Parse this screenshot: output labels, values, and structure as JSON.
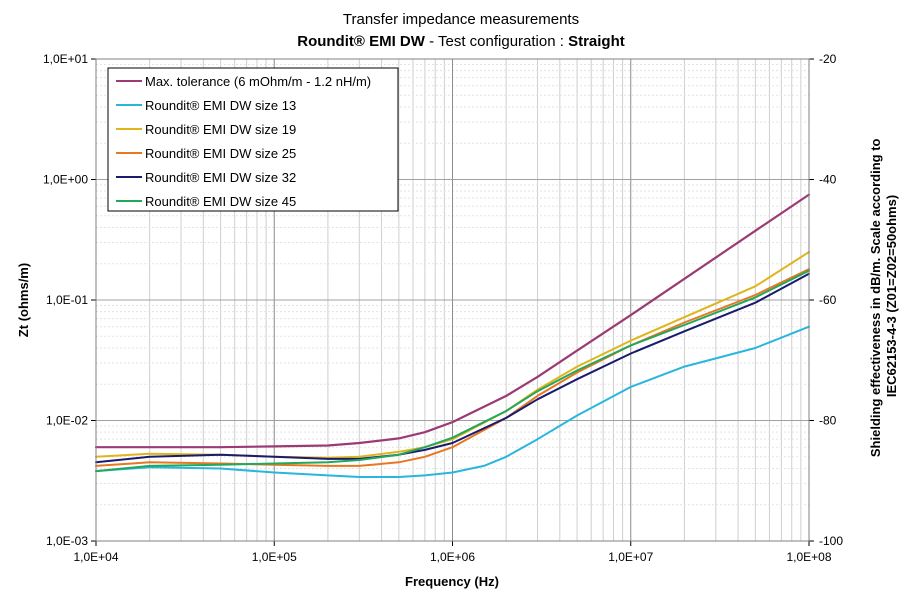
{
  "chart_data": {
    "type": "line",
    "title": "Transfer impedance measurements",
    "subtitle": {
      "part1": "Roundit® EMI DW",
      "part2": " - Test configuration : ",
      "part3": "Straight"
    },
    "xlabel": "Frequency (Hz)",
    "ylabel": "Zt (ohms/m)",
    "y2label_line1": "Shielding effectiveness in dB/m. Scale according to",
    "y2label_line2": "IEC62153-4-3 (Z01=Z02=50ohms)",
    "x_scale": "log",
    "y_scale": "log",
    "xlim": [
      10000,
      100000000
    ],
    "ylim": [
      0.001,
      10
    ],
    "y2lim": [
      -100,
      -20
    ],
    "x_ticks": [
      {
        "value": 10000,
        "label": "1,0E+04"
      },
      {
        "value": 100000,
        "label": "1,0E+05"
      },
      {
        "value": 1000000,
        "label": "1,0E+06"
      },
      {
        "value": 10000000,
        "label": "1,0E+07"
      },
      {
        "value": 100000000,
        "label": "1,0E+08"
      }
    ],
    "y_ticks": [
      {
        "value": 0.001,
        "label": "1,0E-03"
      },
      {
        "value": 0.01,
        "label": "1,0E-02"
      },
      {
        "value": 0.1,
        "label": "1,0E-01"
      },
      {
        "value": 1,
        "label": "1,0E+00"
      },
      {
        "value": 10,
        "label": "1,0E+01"
      }
    ],
    "y2_ticks": [
      {
        "value": -100,
        "label": "-100"
      },
      {
        "value": -80,
        "label": "-80"
      },
      {
        "value": -60,
        "label": "-60"
      },
      {
        "value": -40,
        "label": "-40"
      },
      {
        "value": -20,
        "label": "-20"
      }
    ],
    "grid": true,
    "legend_position": "top-left",
    "series": [
      {
        "name": "Max. tolerance (6 mOhm/m - 1.2 nH/m)",
        "color": "#9b3a74",
        "x": [
          10000,
          50000,
          100000,
          200000,
          300000,
          500000,
          700000,
          1000000,
          2000000,
          3000000,
          5000000,
          10000000,
          20000000,
          50000000,
          100000000
        ],
        "y": [
          0.006,
          0.006,
          0.0061,
          0.0062,
          0.0065,
          0.0071,
          0.008,
          0.0097,
          0.016,
          0.023,
          0.038,
          0.075,
          0.15,
          0.375,
          0.75
        ]
      },
      {
        "name": "Roundit® EMI DW size 13",
        "color": "#29b6dd",
        "x": [
          10000,
          20000,
          50000,
          100000,
          200000,
          300000,
          500000,
          700000,
          1000000,
          1500000,
          2000000,
          3000000,
          5000000,
          10000000,
          20000000,
          50000000,
          100000000
        ],
        "y": [
          0.0038,
          0.0041,
          0.004,
          0.0037,
          0.0035,
          0.0034,
          0.0034,
          0.0035,
          0.0037,
          0.0042,
          0.005,
          0.007,
          0.011,
          0.019,
          0.028,
          0.04,
          0.06
        ]
      },
      {
        "name": "Roundit® EMI DW size 19",
        "color": "#e0b41b",
        "x": [
          10000,
          20000,
          50000,
          100000,
          200000,
          300000,
          500000,
          700000,
          1000000,
          2000000,
          3000000,
          5000000,
          10000000,
          20000000,
          50000000,
          100000000
        ],
        "y": [
          0.005,
          0.0053,
          0.0052,
          0.005,
          0.0049,
          0.005,
          0.0055,
          0.006,
          0.007,
          0.012,
          0.018,
          0.028,
          0.046,
          0.072,
          0.13,
          0.25
        ]
      },
      {
        "name": "Roundit® EMI DW size 25",
        "color": "#e87722",
        "x": [
          10000,
          20000,
          50000,
          100000,
          200000,
          300000,
          500000,
          700000,
          1000000,
          2000000,
          3000000,
          5000000,
          10000000,
          20000000,
          50000000,
          100000000
        ],
        "y": [
          0.0042,
          0.0045,
          0.0044,
          0.0043,
          0.0042,
          0.0042,
          0.0045,
          0.005,
          0.006,
          0.0105,
          0.016,
          0.025,
          0.042,
          0.065,
          0.11,
          0.18
        ]
      },
      {
        "name": "Roundit® EMI DW size 32",
        "color": "#1a1a6e",
        "x": [
          10000,
          20000,
          50000,
          100000,
          200000,
          300000,
          500000,
          700000,
          1000000,
          2000000,
          3000000,
          5000000,
          10000000,
          20000000,
          50000000,
          100000000
        ],
        "y": [
          0.0045,
          0.005,
          0.0052,
          0.005,
          0.0048,
          0.0048,
          0.0052,
          0.0057,
          0.0065,
          0.0105,
          0.015,
          0.022,
          0.036,
          0.055,
          0.095,
          0.165
        ]
      },
      {
        "name": "Roundit® EMI DW size 45",
        "color": "#22a85a",
        "x": [
          10000,
          20000,
          50000,
          100000,
          200000,
          300000,
          500000,
          700000,
          1000000,
          2000000,
          3000000,
          5000000,
          10000000,
          20000000,
          50000000,
          100000000
        ],
        "y": [
          0.0038,
          0.0042,
          0.0043,
          0.0044,
          0.0045,
          0.0047,
          0.0052,
          0.006,
          0.0072,
          0.012,
          0.0175,
          0.026,
          0.042,
          0.062,
          0.105,
          0.175
        ]
      }
    ]
  }
}
